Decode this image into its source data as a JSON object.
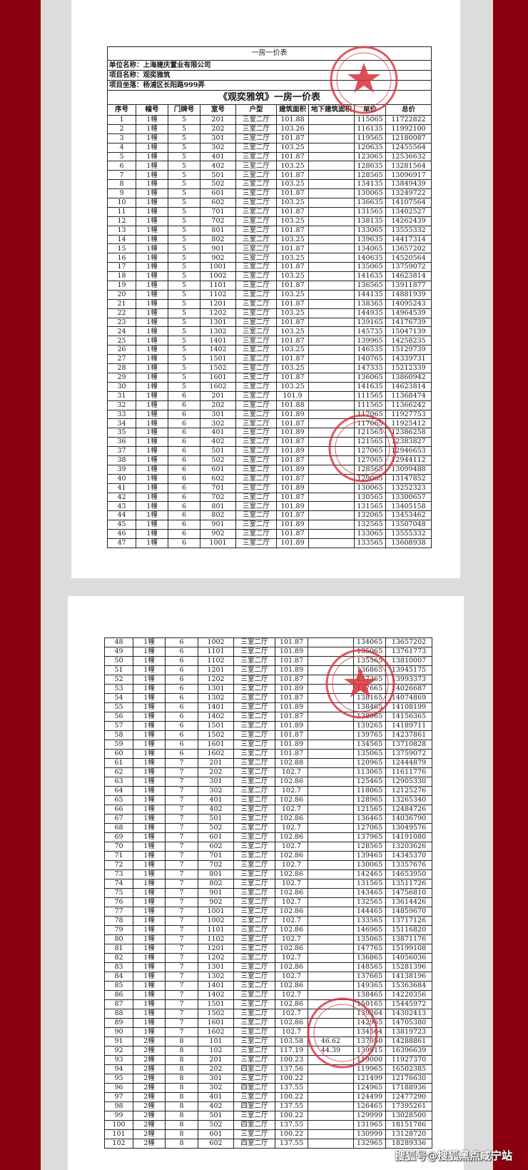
{
  "document": {
    "sheet_title": "一房一价表",
    "company_line": "单位名称：上海建庆置业有限公司",
    "project_line": "项目名称：观奕雅筑",
    "location_line": "项目坐落：杨浦区长阳路999弄",
    "table_title": "《观奕雅筑》一房一价表",
    "headers": [
      "序号",
      "幢号",
      "门牌号",
      "室号",
      "户型",
      "建筑面积",
      "地下建筑面积",
      "单价",
      "总价"
    ]
  },
  "watermark": "搜狐号@搜狐黑点咸宁站",
  "colors": {
    "frame_red": "#8b0010",
    "stamp_red": "#d8303a"
  },
  "page1_rows": [
    [
      "1",
      "1幢",
      "5",
      "201",
      "三室二厅",
      "101.88",
      "",
      "115065",
      "11722822"
    ],
    [
      "2",
      "1幢",
      "5",
      "202",
      "三室二厅",
      "103.26",
      "",
      "116135",
      "11992100"
    ],
    [
      "3",
      "1幢",
      "5",
      "301",
      "三室二厅",
      "101.87",
      "",
      "119565",
      "12180087"
    ],
    [
      "4",
      "1幢",
      "5",
      "302",
      "三室二厅",
      "103.25",
      "",
      "120635",
      "12455564"
    ],
    [
      "5",
      "1幢",
      "5",
      "401",
      "三室二厅",
      "101.87",
      "",
      "123065",
      "12536632"
    ],
    [
      "6",
      "1幢",
      "5",
      "402",
      "三室二厅",
      "103.25",
      "",
      "128635",
      "13281564"
    ],
    [
      "7",
      "1幢",
      "5",
      "501",
      "三室二厅",
      "101.87",
      "",
      "128565",
      "13096917"
    ],
    [
      "8",
      "1幢",
      "5",
      "502",
      "三室二厅",
      "103.25",
      "",
      "134135",
      "13849439"
    ],
    [
      "9",
      "1幢",
      "5",
      "601",
      "三室二厅",
      "101.87",
      "",
      "130065",
      "13249722"
    ],
    [
      "10",
      "1幢",
      "5",
      "602",
      "三室二厅",
      "103.25",
      "",
      "136635",
      "14107564"
    ],
    [
      "11",
      "1幢",
      "5",
      "701",
      "三室二厅",
      "101.87",
      "",
      "131565",
      "13402527"
    ],
    [
      "12",
      "1幢",
      "5",
      "702",
      "三室二厅",
      "103.25",
      "",
      "138135",
      "14262439"
    ],
    [
      "13",
      "1幢",
      "5",
      "801",
      "三室二厅",
      "101.87",
      "",
      "133065",
      "13555332"
    ],
    [
      "14",
      "1幢",
      "5",
      "802",
      "三室二厅",
      "103.25",
      "",
      "139635",
      "14417314"
    ],
    [
      "15",
      "1幢",
      "5",
      "901",
      "三室二厅",
      "101.87",
      "",
      "134065",
      "13657202"
    ],
    [
      "16",
      "1幢",
      "5",
      "902",
      "三室二厅",
      "103.25",
      "",
      "140635",
      "14520564"
    ],
    [
      "17",
      "1幢",
      "5",
      "1001",
      "三室二厅",
      "101.87",
      "",
      "135065",
      "13759072"
    ],
    [
      "18",
      "1幢",
      "5",
      "1002",
      "三室二厅",
      "103.25",
      "",
      "141635",
      "14623814"
    ],
    [
      "19",
      "1幢",
      "5",
      "1101",
      "三室二厅",
      "101.87",
      "",
      "136565",
      "13911877"
    ],
    [
      "20",
      "1幢",
      "5",
      "1102",
      "三室二厅",
      "103.25",
      "",
      "144135",
      "14881939"
    ],
    [
      "21",
      "1幢",
      "5",
      "1201",
      "三室二厅",
      "101.87",
      "",
      "138365",
      "14095243"
    ],
    [
      "22",
      "1幢",
      "5",
      "1202",
      "三室二厅",
      "103.25",
      "",
      "144935",
      "14964539"
    ],
    [
      "23",
      "1幢",
      "5",
      "1301",
      "三室二厅",
      "101.87",
      "",
      "139165",
      "14176739"
    ],
    [
      "24",
      "1幢",
      "5",
      "1302",
      "三室二厅",
      "103.25",
      "",
      "145735",
      "15047139"
    ],
    [
      "25",
      "1幢",
      "5",
      "1401",
      "三室二厅",
      "101.87",
      "",
      "139965",
      "14258235"
    ],
    [
      "26",
      "1幢",
      "5",
      "1402",
      "三室二厅",
      "103.25",
      "",
      "146535",
      "15129739"
    ],
    [
      "27",
      "1幢",
      "5",
      "1501",
      "三室二厅",
      "101.87",
      "",
      "140765",
      "14339731"
    ],
    [
      "28",
      "1幢",
      "5",
      "1502",
      "三室二厅",
      "103.25",
      "",
      "147335",
      "15212339"
    ],
    [
      "29",
      "1幢",
      "5",
      "1601",
      "三室二厅",
      "101.87",
      "",
      "136065",
      "13860942"
    ],
    [
      "30",
      "1幢",
      "5",
      "1602",
      "三室二厅",
      "103.25",
      "",
      "141635",
      "14623814"
    ],
    [
      "31",
      "1幢",
      "6",
      "201",
      "三室二厅",
      "101.9",
      "",
      "111565",
      "11368474"
    ],
    [
      "32",
      "1幢",
      "6",
      "202",
      "三室二厅",
      "101.88",
      "",
      "111565",
      "11366242"
    ],
    [
      "33",
      "1幢",
      "6",
      "301",
      "三室二厅",
      "101.89",
      "",
      "117065",
      "11927753"
    ],
    [
      "34",
      "1幢",
      "6",
      "302",
      "三室二厅",
      "101.87",
      "",
      "117065",
      "11925412"
    ],
    [
      "35",
      "1幢",
      "6",
      "401",
      "三室二厅",
      "101.89",
      "",
      "121565",
      "12386258"
    ],
    [
      "36",
      "1幢",
      "6",
      "402",
      "三室二厅",
      "101.87",
      "",
      "121565",
      "12383827"
    ],
    [
      "37",
      "1幢",
      "6",
      "501",
      "三室二厅",
      "101.89",
      "",
      "127065",
      "12946653"
    ],
    [
      "38",
      "1幢",
      "6",
      "502",
      "三室二厅",
      "101.87",
      "",
      "127065",
      "12944112"
    ],
    [
      "39",
      "1幢",
      "6",
      "601",
      "三室二厅",
      "101.89",
      "",
      "128565",
      "13099488"
    ],
    [
      "40",
      "1幢",
      "6",
      "602",
      "三室二厅",
      "101.87",
      "",
      "129065",
      "13147852"
    ],
    [
      "41",
      "1幢",
      "6",
      "701",
      "三室二厅",
      "101.89",
      "",
      "130065",
      "13252323"
    ],
    [
      "42",
      "1幢",
      "6",
      "702",
      "三室二厅",
      "101.87",
      "",
      "130565",
      "13300657"
    ],
    [
      "43",
      "1幢",
      "6",
      "801",
      "三室二厅",
      "101.89",
      "",
      "131565",
      "13405158"
    ],
    [
      "44",
      "1幢",
      "6",
      "802",
      "三室二厅",
      "101.87",
      "",
      "132065",
      "13453462"
    ],
    [
      "45",
      "1幢",
      "6",
      "901",
      "三室二厅",
      "101.89",
      "",
      "132565",
      "13507048"
    ],
    [
      "46",
      "1幢",
      "6",
      "902",
      "三室二厅",
      "101.87",
      "",
      "133065",
      "13555332"
    ],
    [
      "47",
      "1幢",
      "6",
      "1001",
      "三室二厅",
      "101.89",
      "",
      "133565",
      "13608938"
    ]
  ],
  "page2_rows": [
    [
      "48",
      "1幢",
      "6",
      "1002",
      "三室二厅",
      "101.87",
      "",
      "134065",
      "13657202"
    ],
    [
      "49",
      "1幢",
      "6",
      "1101",
      "三室二厅",
      "101.89",
      "",
      "135065",
      "13761773"
    ],
    [
      "50",
      "1幢",
      "6",
      "1102",
      "三室二厅",
      "101.87",
      "",
      "135565",
      "13810007"
    ],
    [
      "51",
      "1幢",
      "6",
      "1201",
      "三室二厅",
      "101.89",
      "",
      "136865",
      "13945175"
    ],
    [
      "52",
      "1幢",
      "6",
      "1202",
      "三室二厅",
      "101.87",
      "",
      "137365",
      "13993373"
    ],
    [
      "53",
      "1幢",
      "6",
      "1301",
      "三室二厅",
      "101.89",
      "",
      "137665",
      "14026687"
    ],
    [
      "54",
      "1幢",
      "6",
      "1302",
      "三室二厅",
      "101.87",
      "",
      "138165",
      "14074869"
    ],
    [
      "55",
      "1幢",
      "6",
      "1401",
      "三室二厅",
      "101.89",
      "",
      "138465",
      "14108199"
    ],
    [
      "56",
      "1幢",
      "6",
      "1402",
      "三室二厅",
      "101.87",
      "",
      "138965",
      "14156365"
    ],
    [
      "57",
      "1幢",
      "6",
      "1501",
      "三室二厅",
      "101.89",
      "",
      "139265",
      "14189711"
    ],
    [
      "58",
      "1幢",
      "6",
      "1502",
      "三室二厅",
      "101.87",
      "",
      "139765",
      "14237861"
    ],
    [
      "59",
      "1幢",
      "6",
      "1601",
      "三室二厅",
      "101.89",
      "",
      "134565",
      "13710828"
    ],
    [
      "60",
      "1幢",
      "6",
      "1602",
      "三室二厅",
      "101.87",
      "",
      "135065",
      "13759072"
    ],
    [
      "61",
      "1幢",
      "7",
      "201",
      "三室二厅",
      "102.88",
      "",
      "120965",
      "12444879"
    ],
    [
      "62",
      "1幢",
      "7",
      "202",
      "三室二厅",
      "102.7",
      "",
      "113065",
      "11611776"
    ],
    [
      "63",
      "1幢",
      "7",
      "301",
      "三室二厅",
      "102.86",
      "",
      "125465",
      "12905330"
    ],
    [
      "64",
      "1幢",
      "7",
      "302",
      "三室二厅",
      "102.7",
      "",
      "118065",
      "12125276"
    ],
    [
      "65",
      "1幢",
      "7",
      "401",
      "三室二厅",
      "102.86",
      "",
      "128965",
      "13265340"
    ],
    [
      "66",
      "1幢",
      "7",
      "402",
      "三室二厅",
      "102.7",
      "",
      "121565",
      "12484726"
    ],
    [
      "67",
      "1幢",
      "7",
      "501",
      "三室二厅",
      "102.86",
      "",
      "136465",
      "14036790"
    ],
    [
      "68",
      "1幢",
      "7",
      "502",
      "三室二厅",
      "102.7",
      "",
      "127065",
      "13049576"
    ],
    [
      "69",
      "1幢",
      "7",
      "601",
      "三室二厅",
      "102.86",
      "",
      "137965",
      "14191080"
    ],
    [
      "70",
      "1幢",
      "7",
      "602",
      "三室二厅",
      "102.7",
      "",
      "128565",
      "13203626"
    ],
    [
      "71",
      "1幢",
      "7",
      "701",
      "三室二厅",
      "102.86",
      "",
      "139465",
      "14345370"
    ],
    [
      "72",
      "1幢",
      "7",
      "702",
      "三室二厅",
      "102.7",
      "",
      "130065",
      "13357676"
    ],
    [
      "73",
      "1幢",
      "7",
      "801",
      "三室二厅",
      "102.86",
      "",
      "142465",
      "14653950"
    ],
    [
      "74",
      "1幢",
      "7",
      "802",
      "三室二厅",
      "102.7",
      "",
      "131565",
      "13511726"
    ],
    [
      "75",
      "1幢",
      "7",
      "901",
      "三室二厅",
      "102.86",
      "",
      "143465",
      "14756810"
    ],
    [
      "76",
      "1幢",
      "7",
      "902",
      "三室二厅",
      "102.7",
      "",
      "132565",
      "13614426"
    ],
    [
      "77",
      "1幢",
      "7",
      "1001",
      "三室二厅",
      "102.86",
      "",
      "144465",
      "14859670"
    ],
    [
      "78",
      "1幢",
      "7",
      "1002",
      "三室二厅",
      "102.7",
      "",
      "133565",
      "13717126"
    ],
    [
      "79",
      "1幢",
      "7",
      "1101",
      "三室二厅",
      "102.86",
      "",
      "146965",
      "15116820"
    ],
    [
      "80",
      "1幢",
      "7",
      "1102",
      "三室二厅",
      "102.7",
      "",
      "135065",
      "13871176"
    ],
    [
      "81",
      "1幢",
      "7",
      "1201",
      "三室二厅",
      "102.86",
      "",
      "147765",
      "15199108"
    ],
    [
      "82",
      "1幢",
      "7",
      "1202",
      "三室二厅",
      "102.7",
      "",
      "136865",
      "14056036"
    ],
    [
      "83",
      "1幢",
      "7",
      "1301",
      "三室二厅",
      "102.86",
      "",
      "148565",
      "15281396"
    ],
    [
      "84",
      "1幢",
      "7",
      "1302",
      "三室二厅",
      "102.7",
      "",
      "137665",
      "14138196"
    ],
    [
      "85",
      "1幢",
      "7",
      "1401",
      "三室二厅",
      "102.86",
      "",
      "149365",
      "15363684"
    ],
    [
      "86",
      "1幢",
      "7",
      "1402",
      "三室二厅",
      "102.7",
      "",
      "138465",
      "14220356"
    ],
    [
      "87",
      "1幢",
      "7",
      "1501",
      "三室二厅",
      "102.86",
      "",
      "150165",
      "15445972"
    ],
    [
      "88",
      "1幢",
      "7",
      "1502",
      "三室二厅",
      "102.7",
      "",
      "139264",
      "14302413"
    ],
    [
      "89",
      "1幢",
      "7",
      "1601",
      "三室二厅",
      "102.86",
      "",
      "142965",
      "14705380"
    ],
    [
      "90",
      "1幢",
      "7",
      "1602",
      "三室二厅",
      "102.7",
      "",
      "134564",
      "13819723"
    ],
    [
      "91",
      "2幢",
      "8",
      "101",
      "三室二厅",
      "103.58",
      "46.62",
      "137950",
      "14288861"
    ],
    [
      "92",
      "2幢",
      "8",
      "102",
      "三室二厅",
      "117.19",
      "44.39",
      "139915",
      "16396639"
    ],
    [
      "93",
      "2幢",
      "8",
      "201",
      "三室二厅",
      "100.23",
      "",
      "119000",
      "11927370"
    ],
    [
      "94",
      "2幢",
      "8",
      "202",
      "四室二厅",
      "137.56",
      "",
      "119965",
      "16502385"
    ],
    [
      "95",
      "2幢",
      "8",
      "301",
      "三室二厅",
      "100.22",
      "",
      "121499",
      "12176630"
    ],
    [
      "96",
      "2幢",
      "8",
      "302",
      "四室二厅",
      "137.55",
      "",
      "124965",
      "17188936"
    ],
    [
      "97",
      "2幢",
      "8",
      "401",
      "三室二厅",
      "100.22",
      "",
      "124499",
      "12477290"
    ],
    [
      "98",
      "2幢",
      "8",
      "402",
      "四室二厅",
      "137.55",
      "",
      "126465",
      "17395261"
    ],
    [
      "99",
      "2幢",
      "8",
      "501",
      "三室二厅",
      "100.22",
      "",
      "129999",
      "13028500"
    ],
    [
      "100",
      "2幢",
      "8",
      "502",
      "四室二厅",
      "137.55",
      "",
      "131965",
      "18151786"
    ],
    [
      "101",
      "2幢",
      "8",
      "601",
      "三室二厅",
      "100.22",
      "",
      "130999",
      "13128720"
    ],
    [
      "102",
      "2幢",
      "8",
      "602",
      "四室二厅",
      "137.55",
      "",
      "132965",
      "18289336"
    ]
  ]
}
